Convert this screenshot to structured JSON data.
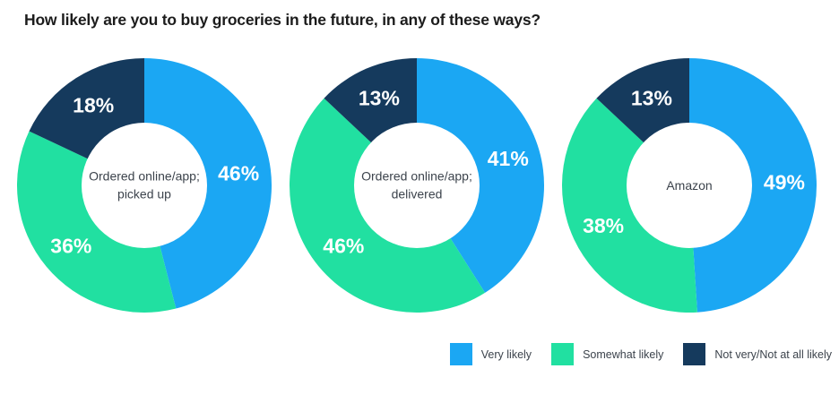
{
  "title": "How likely are you to buy groceries in the future, in any of these ways?",
  "palette": {
    "very_likely": "#1BA7F3",
    "somewhat_likely": "#21E0A1",
    "not_likely": "#153A5D",
    "segment_value_text": "#FFFFFF",
    "center_text": "#3C434C",
    "title_text": "#1C1C1C",
    "background": "#FFFFFF"
  },
  "chart_data": [
    {
      "type": "pie",
      "donut": true,
      "center_label_lines": [
        "Ordered online/app;",
        "picked up"
      ],
      "categories": [
        "Very likely",
        "Somewhat likely",
        "Not very/Not at all likely"
      ],
      "values": [
        46,
        36,
        18
      ],
      "value_label_format": "percent",
      "colors": [
        "#1BA7F3",
        "#21E0A1",
        "#153A5D"
      ],
      "start_angle_deg": 0,
      "direction": "clockwise"
    },
    {
      "type": "pie",
      "donut": true,
      "center_label_lines": [
        "Ordered online/app;",
        "delivered"
      ],
      "categories": [
        "Very likely",
        "Somewhat likely",
        "Not very/Not at all likely"
      ],
      "values": [
        41,
        46,
        13
      ],
      "value_label_format": "percent",
      "colors": [
        "#1BA7F3",
        "#21E0A1",
        "#153A5D"
      ],
      "start_angle_deg": 0,
      "direction": "clockwise"
    },
    {
      "type": "pie",
      "donut": true,
      "center_label_lines": [
        "Amazon"
      ],
      "categories": [
        "Very likely",
        "Somewhat likely",
        "Not very/Not at all likely"
      ],
      "values": [
        49,
        38,
        13
      ],
      "value_label_format": "percent",
      "colors": [
        "#1BA7F3",
        "#21E0A1",
        "#153A5D"
      ],
      "start_angle_deg": 0,
      "direction": "clockwise"
    }
  ],
  "legend": {
    "position": "bottom-right",
    "items": [
      {
        "label": "Very likely",
        "color": "#1BA7F3"
      },
      {
        "label": "Somewhat likely",
        "color": "#21E0A1"
      },
      {
        "label": "Not very/Not at all likely",
        "color": "#153A5D"
      }
    ]
  }
}
